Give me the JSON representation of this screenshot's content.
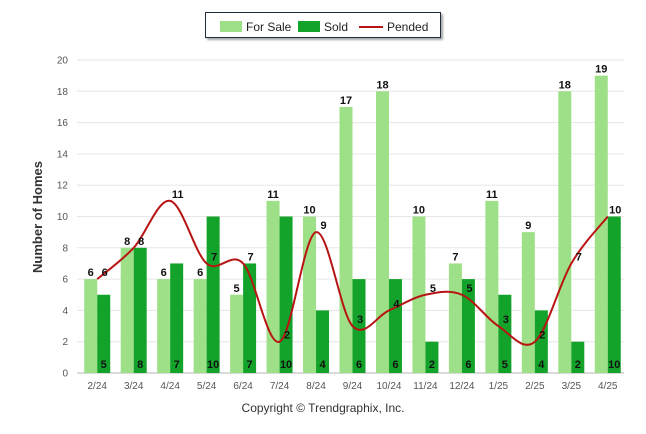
{
  "chart_data": {
    "type": "bar",
    "categories": [
      "2/24",
      "3/24",
      "4/24",
      "5/24",
      "6/24",
      "7/24",
      "8/24",
      "9/24",
      "10/24",
      "11/24",
      "12/24",
      "1/25",
      "2/25",
      "3/25",
      "4/25"
    ],
    "series": [
      {
        "name": "For Sale",
        "type": "bar",
        "color": "#9ee087",
        "values": [
          6,
          8,
          6,
          6,
          5,
          11,
          10,
          17,
          18,
          10,
          7,
          11,
          9,
          18,
          19
        ]
      },
      {
        "name": "Sold",
        "type": "bar",
        "color": "#14a32a",
        "values": [
          5,
          8,
          7,
          10,
          7,
          10,
          4,
          6,
          6,
          2,
          6,
          5,
          4,
          2,
          10
        ]
      },
      {
        "name": "Pended",
        "type": "line",
        "color": "#b81414",
        "values": [
          6,
          8,
          11,
          7,
          7,
          2,
          9,
          3,
          4,
          5,
          5,
          3,
          2,
          7,
          10
        ]
      }
    ],
    "ylabel": "Number of Homes",
    "xlabel": "",
    "ylim": [
      0,
      20
    ],
    "yticks": [
      0,
      2,
      4,
      6,
      8,
      10,
      12,
      14,
      16,
      18,
      20
    ],
    "grid": true,
    "legend_position": "top-center"
  },
  "legend": {
    "items": [
      {
        "label": "For Sale",
        "color": "#9ee087"
      },
      {
        "label": "Sold",
        "color": "#14a32a"
      },
      {
        "label": "Pended",
        "color": "#b81414"
      }
    ]
  },
  "footer": {
    "copyright": "Copyright © Trendgraphix, Inc."
  }
}
